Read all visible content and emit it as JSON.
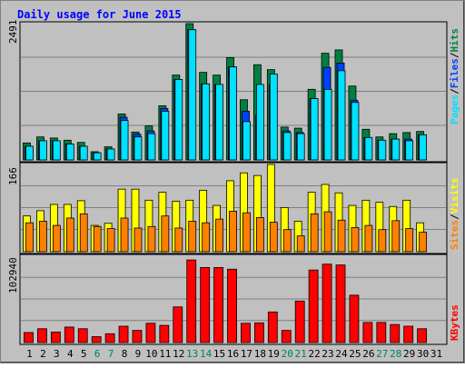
{
  "title": "Daily usage for June 2015",
  "colors": {
    "background": "#c0c0c0",
    "title": "#0000ff",
    "hits": "#008040",
    "files": "#0040ff",
    "pages": "#00e0ff",
    "visits": "#ffff00",
    "sites": "#ff8000",
    "kbytes": "#ff0000",
    "weekend_label": "#00805c",
    "weekday_label": "#000000"
  },
  "chart_data": [
    {
      "type": "bar",
      "panel": "top",
      "max_label": "2491",
      "ylim": [
        0,
        2491
      ],
      "grid": true,
      "legend": [
        "Pages",
        "Files",
        "Hits"
      ],
      "categories": [
        "1",
        "2",
        "3",
        "4",
        "5",
        "6",
        "7",
        "8",
        "9",
        "10",
        "11",
        "12",
        "13",
        "14",
        "15",
        "16",
        "17",
        "18",
        "19",
        "20",
        "21",
        "22",
        "23",
        "24",
        "25",
        "26",
        "27",
        "28",
        "29",
        "30",
        "31"
      ],
      "series": [
        {
          "name": "Hits",
          "values": [
            310,
            420,
            400,
            360,
            320,
            150,
            240,
            840,
            510,
            620,
            990,
            1550,
            2491,
            1600,
            1550,
            1870,
            1100,
            1740,
            1650,
            600,
            580,
            1290,
            1950,
            2010,
            1350,
            560,
            420,
            480,
            500,
            520,
            0
          ]
        },
        {
          "name": "Files",
          "values": [
            250,
            350,
            350,
            290,
            250,
            130,
            200,
            780,
            470,
            530,
            940,
            1470,
            2380,
            1390,
            1380,
            1700,
            890,
            820,
            1380,
            530,
            500,
            1120,
            1690,
            1770,
            1090,
            410,
            360,
            380,
            380,
            460,
            0
          ]
        },
        {
          "name": "Pages",
          "values": [
            250,
            350,
            350,
            290,
            250,
            130,
            200,
            720,
            420,
            480,
            890,
            1470,
            2380,
            1390,
            1380,
            1700,
            700,
            1380,
            1570,
            500,
            480,
            1120,
            1290,
            1630,
            1050,
            410,
            360,
            380,
            350,
            460,
            0
          ]
        }
      ]
    },
    {
      "type": "bar",
      "panel": "middle",
      "max_label": "166",
      "ylim": [
        0,
        166
      ],
      "grid": true,
      "legend": [
        "Sites",
        "Visits"
      ],
      "categories": [
        "1",
        "2",
        "3",
        "4",
        "5",
        "6",
        "7",
        "8",
        "9",
        "10",
        "11",
        "12",
        "13",
        "14",
        "15",
        "16",
        "17",
        "18",
        "19",
        "20",
        "21",
        "22",
        "23",
        "24",
        "25",
        "26",
        "27",
        "28",
        "29",
        "30",
        "31"
      ],
      "series": [
        {
          "name": "Visits",
          "values": [
            68,
            78,
            90,
            90,
            97,
            50,
            54,
            119,
            119,
            98,
            113,
            96,
            98,
            117,
            88,
            135,
            150,
            145,
            166,
            84,
            58,
            113,
            128,
            112,
            88,
            98,
            94,
            86,
            98,
            55,
            0
          ]
        },
        {
          "name": "Sites",
          "values": [
            55,
            58,
            50,
            64,
            72,
            48,
            44,
            64,
            45,
            48,
            68,
            45,
            58,
            55,
            62,
            77,
            74,
            65,
            56,
            42,
            30,
            72,
            76,
            60,
            46,
            50,
            42,
            59,
            44,
            37,
            0
          ]
        }
      ]
    },
    {
      "type": "bar",
      "panel": "bottom",
      "max_label": "102940",
      "ylim": [
        0,
        102940
      ],
      "grid": true,
      "legend": [
        "KBytes"
      ],
      "categories": [
        "1",
        "2",
        "3",
        "4",
        "5",
        "6",
        "7",
        "8",
        "9",
        "10",
        "11",
        "12",
        "13",
        "14",
        "15",
        "16",
        "17",
        "18",
        "19",
        "20",
        "21",
        "22",
        "23",
        "24",
        "25",
        "26",
        "27",
        "28",
        "29",
        "30",
        "31"
      ],
      "series": [
        {
          "name": "KBytes",
          "values": [
            12000,
            16500,
            12500,
            18500,
            16500,
            7000,
            10500,
            19500,
            14500,
            23000,
            20500,
            42500,
            98500,
            89500,
            89500,
            87500,
            23000,
            23500,
            36500,
            14500,
            49500,
            86500,
            93500,
            92500,
            56500,
            24000,
            24000,
            21500,
            19500,
            16500,
            0
          ]
        }
      ]
    }
  ],
  "legend_labels": {
    "top": {
      "pages": "Pages",
      "sep1": "/",
      "files": "Files",
      "sep2": "/",
      "hits": "Hits"
    },
    "middle": {
      "sites": "Sites",
      "sep1": "/",
      "visits": "Visits"
    },
    "bottom": {
      "kbytes": "KBytes"
    }
  },
  "weekend_days": [
    6,
    7,
    13,
    14,
    20,
    21,
    27,
    28
  ]
}
